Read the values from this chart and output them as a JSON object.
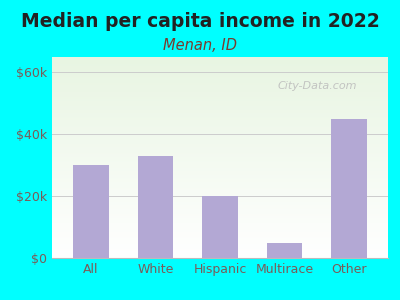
{
  "title": "Median per capita income in 2022",
  "subtitle": "Menan, ID",
  "categories": [
    "All",
    "White",
    "Hispanic",
    "Multirace",
    "Other"
  ],
  "values": [
    30000,
    33000,
    20000,
    5000,
    45000
  ],
  "bar_color": "#b3a8d4",
  "background_color": "#00ffff",
  "plot_bg_top": "#e8f5e2",
  "plot_bg_bottom": "#ffffff",
  "title_color": "#222222",
  "subtitle_color": "#7a3b2e",
  "tick_color": "#7a5c58",
  "ytick_labels": [
    "$0",
    "$20k",
    "$40k",
    "$60k"
  ],
  "ytick_values": [
    0,
    20000,
    40000,
    60000
  ],
  "ylim": [
    0,
    65000
  ],
  "watermark": "City-Data.com",
  "title_fontsize": 13.5,
  "subtitle_fontsize": 10.5
}
